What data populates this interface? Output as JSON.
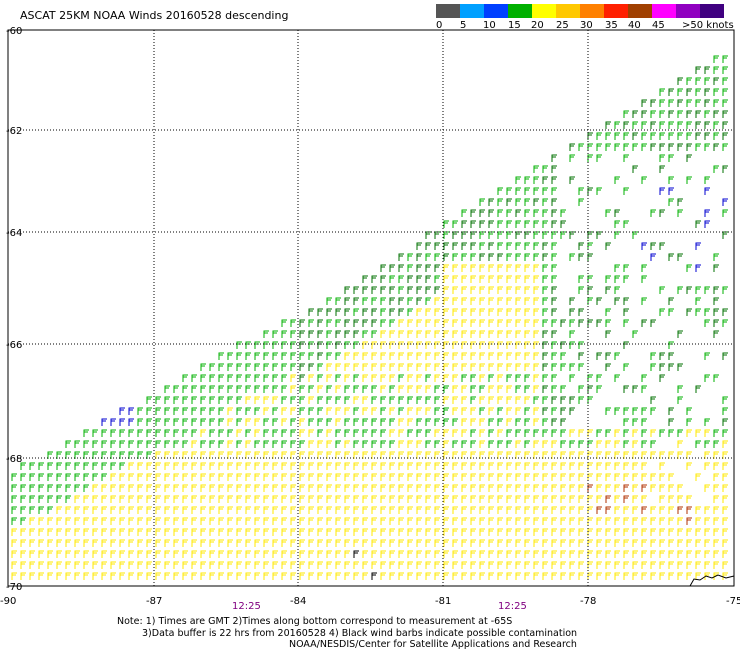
{
  "title": "ASCAT 25KM NOAA Winds 20160528 descending",
  "scale": {
    "colors": [
      "#555555",
      "#00a0ff",
      "#0040ff",
      "#00b000",
      "#ffff00",
      "#ffc800",
      "#ff8000",
      "#ff2000",
      "#a04000",
      "#ff00ff",
      "#9000c0",
      "#400080"
    ],
    "labels": [
      "0",
      "5",
      "10",
      "15",
      "20",
      "25",
      "30",
      "35",
      "40",
      "45",
      ">50 knots"
    ]
  },
  "lat_labels": [
    "-60",
    "-62",
    "-64",
    "-66",
    "-68",
    "-70"
  ],
  "lon_labels": [
    "-90",
    "-87",
    "-84",
    "-81",
    "-78",
    "-75"
  ],
  "time_labels": [
    "12:25",
    "12:25"
  ],
  "notes": {
    "line1": "Note: 1) Times are GMT 2)Times along bottom correspond to measurement at -65S",
    "line2": "3)Data buffer is 22 hrs from 20160528 4) Black wind barbs indicate possible contamination",
    "line3": "NOAA/NESDIS/Center for Satellite Applications and Research"
  }
}
